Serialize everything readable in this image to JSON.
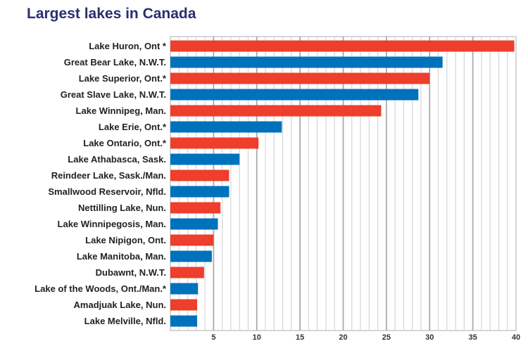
{
  "chart_data": {
    "type": "bar",
    "orientation": "horizontal",
    "title": "Largest lakes in Canada",
    "xlabel": "",
    "ylabel": "",
    "xlim": [
      0,
      40
    ],
    "xticks": [
      5,
      10,
      15,
      20,
      25,
      30,
      35,
      40
    ],
    "grid": true,
    "categories": [
      "Lake Huron, Ont *",
      "Great Bear Lake, N.W.T.",
      "Lake Superior, Ont.*",
      "Great Slave Lake, N.W.T.",
      "Lake Winnipeg, Man.",
      "Lake Erie, Ont.*",
      "Lake Ontario, Ont.*",
      "Lake Athabasca, Sask.",
      "Reindeer Lake, Sask./Man.",
      "Smallwood Reservoir, Nfld.",
      "Nettilling Lake, Nun.",
      "Lake Winnipegosis, Man.",
      "Lake Nipigon, Ont.",
      "Lake Manitoba, Man.",
      "Dubawnt, N.W.T.",
      "Lake of the Woods, Ont./Man.*",
      "Amadjuak Lake, Nun.",
      "Lake Melville, Nfld."
    ],
    "values": [
      39.8,
      31.5,
      30.0,
      28.7,
      24.4,
      12.9,
      10.2,
      8.0,
      6.8,
      6.8,
      5.8,
      5.5,
      5.0,
      4.8,
      3.9,
      3.2,
      3.1,
      3.1
    ],
    "colors": [
      "#ee3e2c",
      "#0072bc"
    ]
  }
}
